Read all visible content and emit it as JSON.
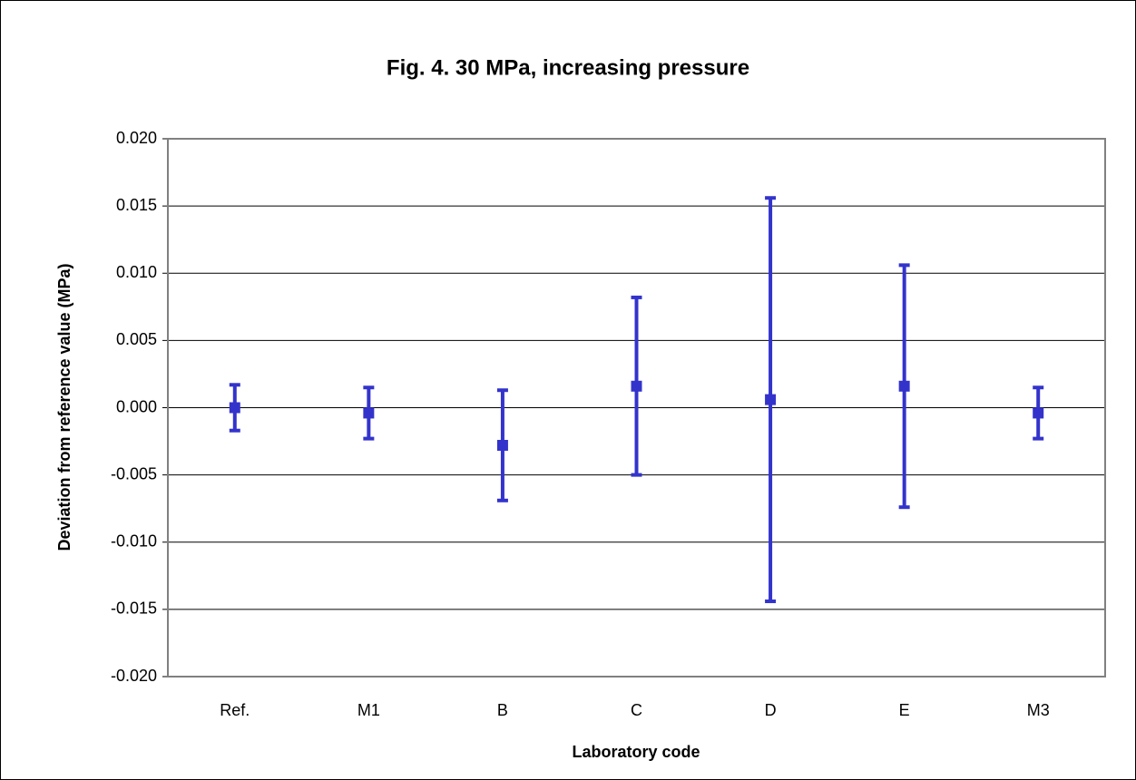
{
  "chart_data": {
    "type": "errorbar",
    "title": "Fig. 4.  30 MPa, increasing pressure",
    "x_label": "Laboratory code",
    "y_label": "Deviation from reference value (MPa)",
    "categories": [
      "Ref.",
      "M1",
      "B",
      "C",
      "D",
      "E",
      "M3"
    ],
    "values": [
      0.0,
      -0.0004,
      -0.0028,
      0.0016,
      0.0006,
      0.0016,
      -0.0004
    ],
    "errors": [
      0.0017,
      0.0019,
      0.0041,
      0.0066,
      0.015,
      0.009,
      0.0019
    ],
    "color": "#3333cc",
    "ylim": [
      -0.02,
      0.02
    ],
    "yticks": [
      {
        "value": -0.02,
        "label": "-0.020"
      },
      {
        "value": -0.015,
        "label": "-0.015"
      },
      {
        "value": -0.01,
        "label": "-0.010"
      },
      {
        "value": -0.005,
        "label": "-0.005"
      },
      {
        "value": 0,
        "label": "0.000"
      },
      {
        "value": 0.005,
        "label": "0.005"
      },
      {
        "value": 0.01,
        "label": "0.010"
      },
      {
        "value": 0.015,
        "label": "0.015"
      },
      {
        "value": 0.02,
        "label": "0.020"
      }
    ],
    "grid": true
  }
}
